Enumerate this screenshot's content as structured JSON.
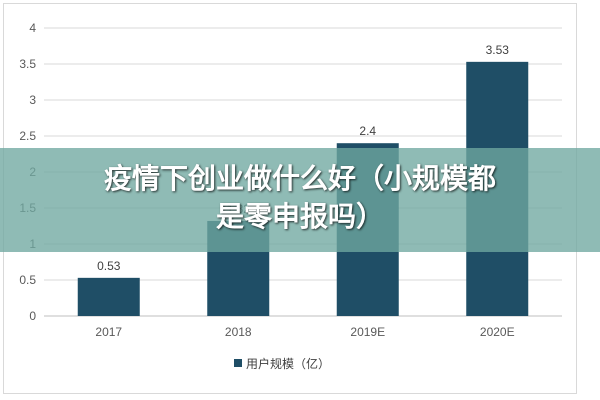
{
  "chart_data": {
    "type": "bar",
    "categories": [
      "2017",
      "2018",
      "2019E",
      "2020E"
    ],
    "series": [
      {
        "name": "用户规模（亿）",
        "values": [
          0.53,
          1.32,
          2.4,
          3.53
        ]
      }
    ],
    "value_labels": [
      "0.53",
      "1.32",
      "2.4",
      "3.53"
    ],
    "yticks": [
      "0",
      "0.5",
      "1",
      "1.5",
      "2",
      "2.5",
      "3",
      "3.5",
      "4"
    ],
    "ylim": [
      0,
      4
    ],
    "grid": true,
    "legend_position": "bottom",
    "bar_color": "#1f4e66"
  },
  "overlay": {
    "line1": "疫情下创业做什么好（小规模都",
    "line2": "是零申报吗）"
  }
}
